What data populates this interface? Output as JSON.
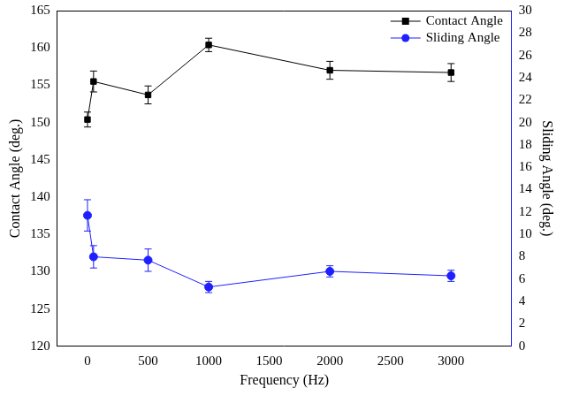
{
  "chart_data": {
    "type": "line",
    "x_label": "Frequency (Hz)",
    "y_label": "Contact Angle (deg.)",
    "y2_label": "Sliding Angle (deg.)",
    "x": [
      0,
      50,
      500,
      1000,
      2000,
      3000
    ],
    "series": [
      {
        "name": "Contact Angle",
        "color": "#000000",
        "marker": "square",
        "line_style": "solid",
        "values": [
          150.4,
          155.5,
          153.7,
          160.4,
          157.0,
          156.7
        ],
        "errors": [
          1.0,
          1.4,
          1.2,
          0.9,
          1.2,
          1.2
        ]
      },
      {
        "name": "Sliding Angle",
        "color": "#1f1fff",
        "marker": "circle",
        "line_style": "solid",
        "axis": "y2",
        "values": [
          11.7,
          8.0,
          7.7,
          5.3,
          6.7,
          6.3
        ],
        "errors": [
          1.4,
          1.0,
          1.0,
          0.5,
          0.5,
          0.5
        ]
      }
    ],
    "xlim": [
      -250,
      3500
    ],
    "xticks": [
      0,
      500,
      1000,
      1500,
      2000,
      2500,
      3000
    ],
    "ylim": [
      120,
      165
    ],
    "yticks": [
      120,
      125,
      130,
      135,
      140,
      145,
      150,
      155,
      160,
      165
    ],
    "y2lim": [
      0,
      30
    ],
    "y2ticks": [
      0,
      2,
      4,
      6,
      8,
      10,
      12,
      14,
      16,
      18,
      20,
      22,
      24,
      26,
      28,
      30
    ],
    "grid": false,
    "legend": "upper right"
  }
}
